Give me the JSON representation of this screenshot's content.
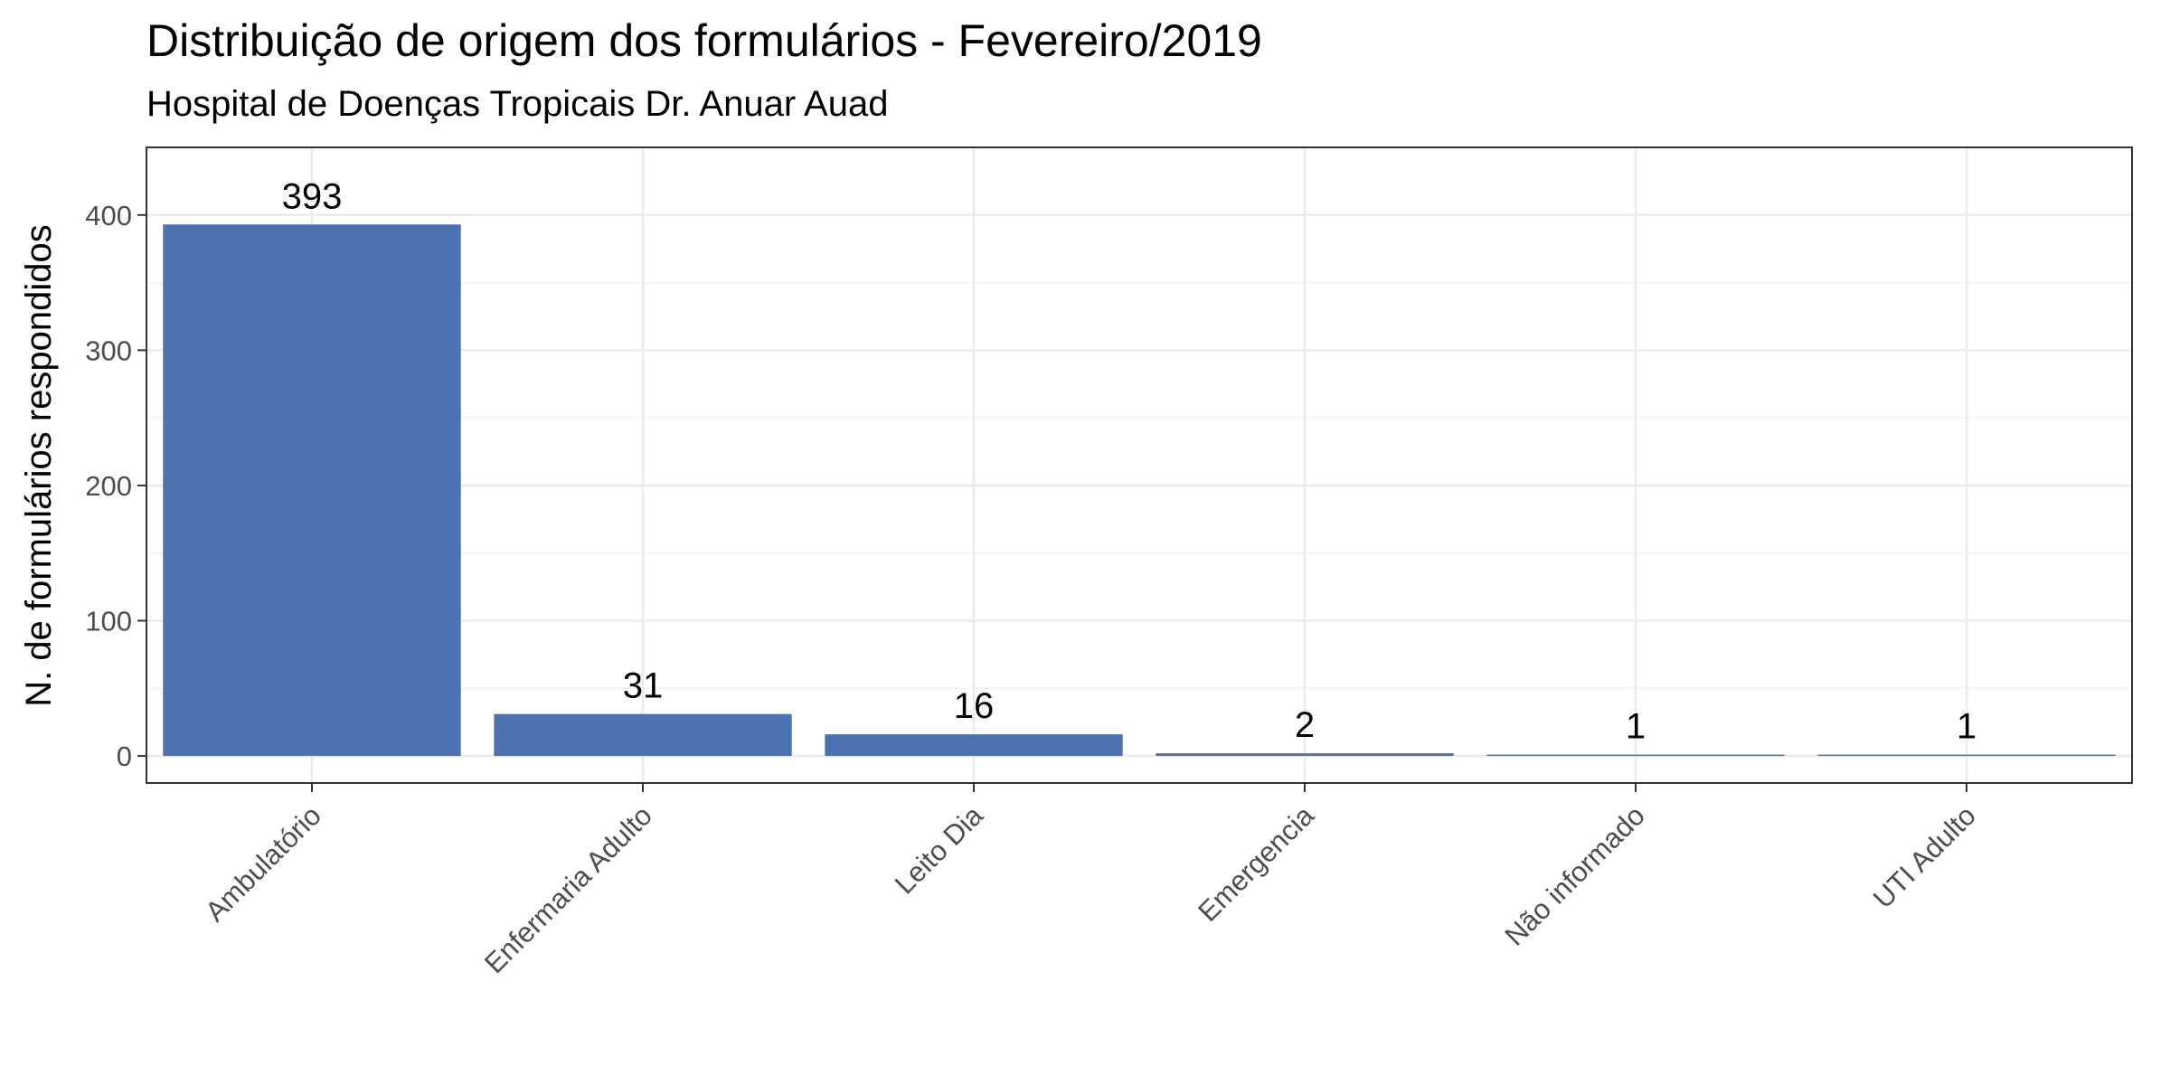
{
  "chart_data": {
    "type": "bar",
    "title": "Distribuição de origem dos formulários - Fevereiro/2019",
    "subtitle": "Hospital de Doenças Tropicais Dr. Anuar Auad",
    "xlabel": "",
    "ylabel": "N. de formulários respondidos",
    "categories": [
      "Ambulatório",
      "Enfermaria Adulto",
      "Leito Dia",
      "Emergencia",
      "Não informado",
      "UTI Adulto"
    ],
    "values": [
      393,
      31,
      16,
      2,
      1,
      1
    ],
    "data_labels": [
      "393",
      "31",
      "16",
      "2",
      "1",
      "1"
    ],
    "ylim": [
      -20,
      450
    ],
    "yticks": [
      0,
      100,
      200,
      300,
      400
    ],
    "grid": true,
    "legend": "none",
    "bar_color": "#4C72B0"
  }
}
